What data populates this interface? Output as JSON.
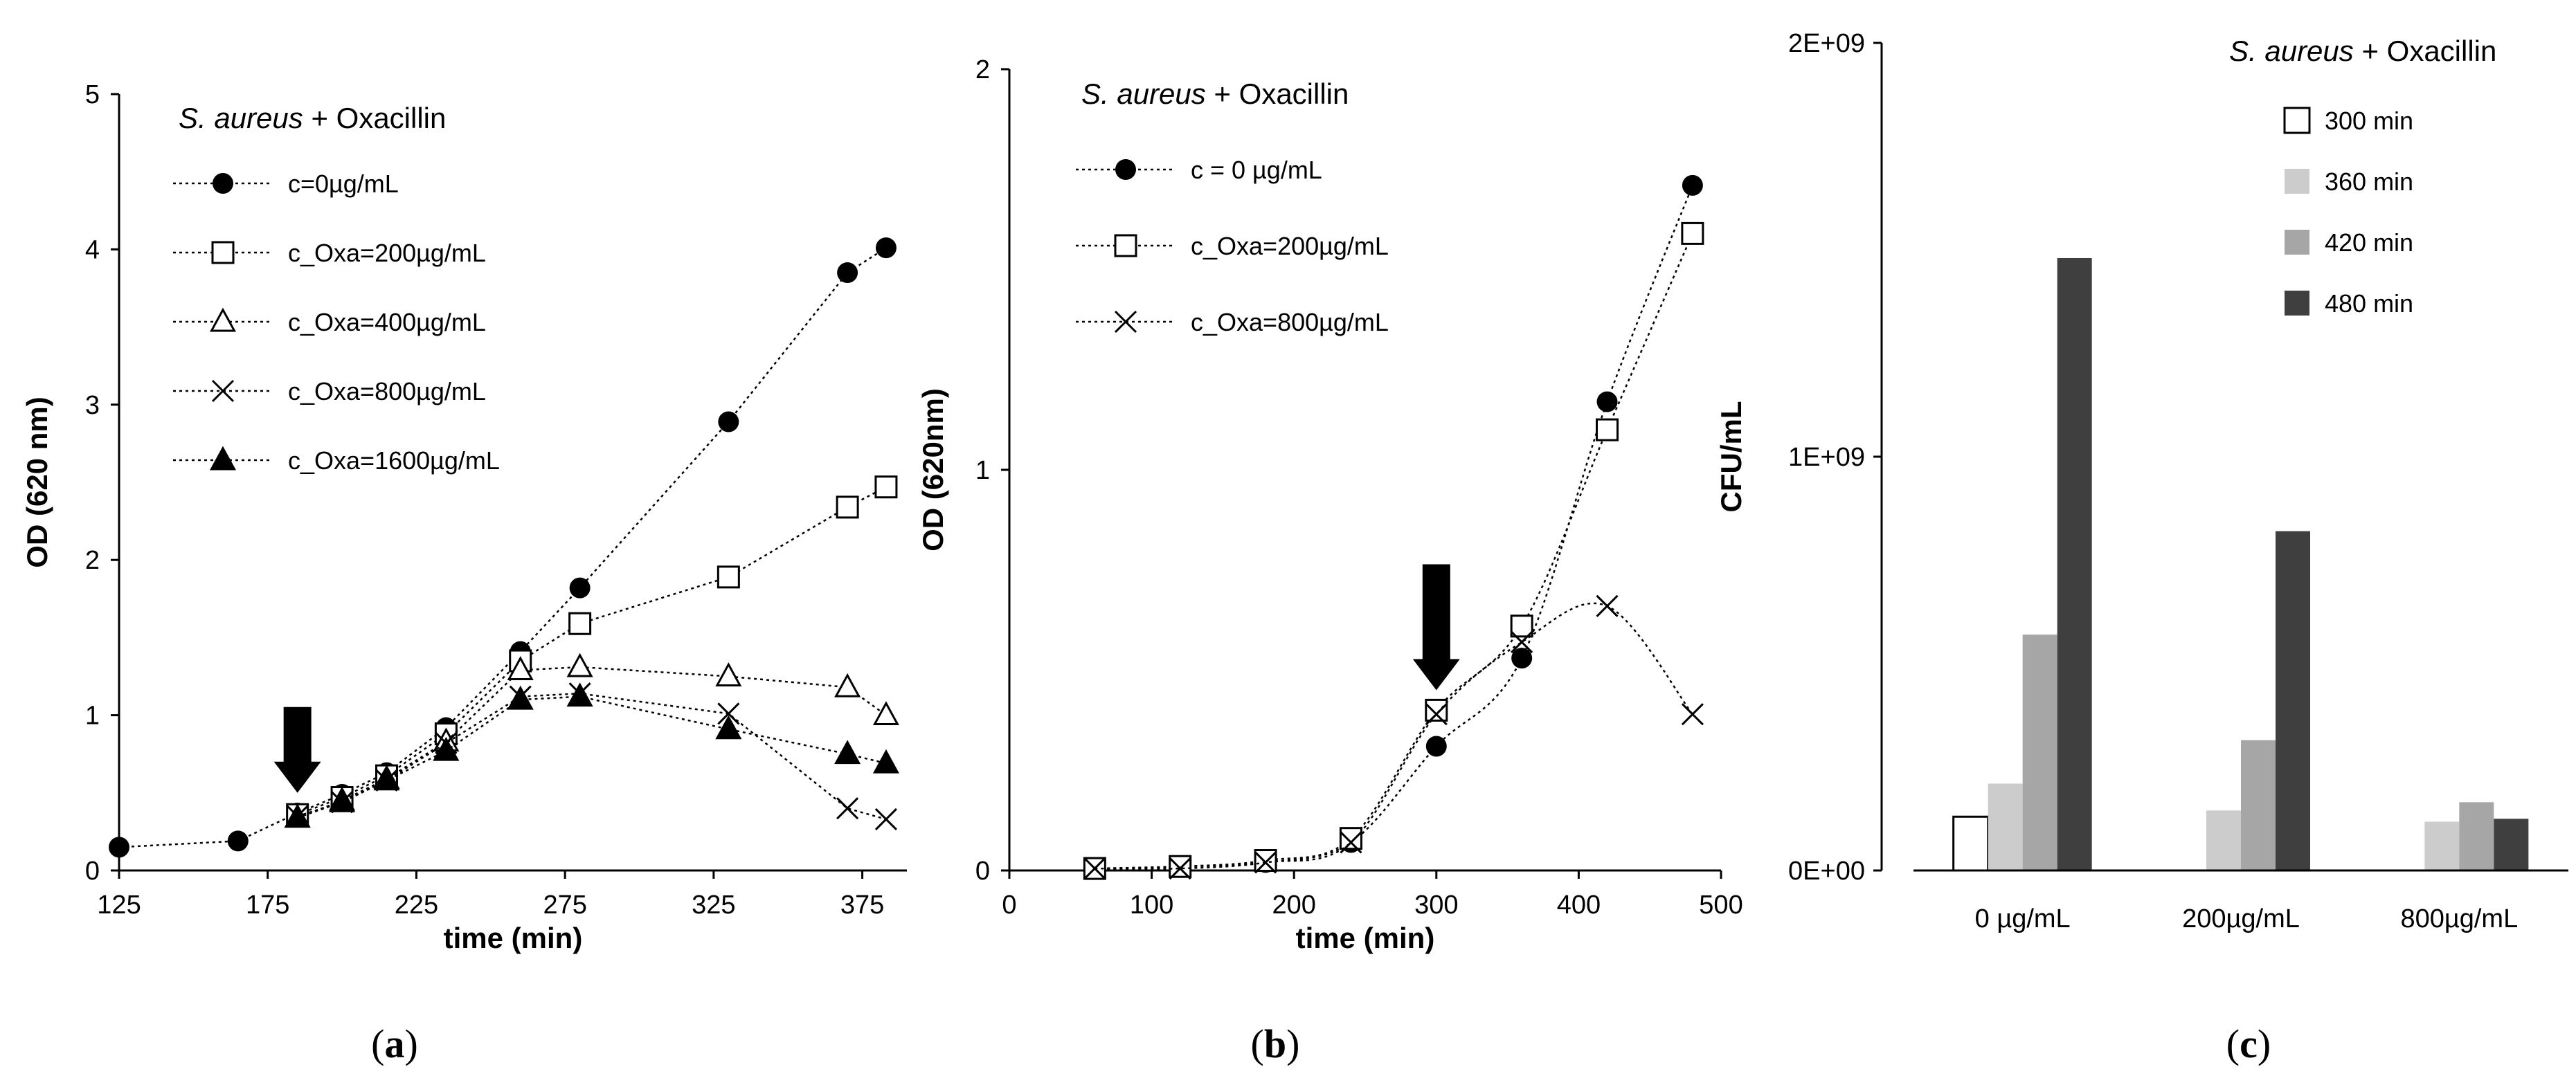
{
  "chart_data": [
    {
      "type": "line",
      "panel_label": "a",
      "legend_title": {
        "italic": "S. aureus",
        "rest": " + Oxacillin"
      },
      "xlabel": "time (min)",
      "ylabel": "OD (620 nm)",
      "xlim": [
        125,
        390
      ],
      "ylim": [
        0,
        5
      ],
      "xticks": [
        "125",
        "175",
        "225",
        "275",
        "325",
        "375"
      ],
      "yticks": [
        "0",
        "1",
        "2",
        "3",
        "4",
        "5"
      ],
      "annotation": {
        "type": "arrow",
        "x": 185,
        "y": 0.5
      },
      "series": [
        {
          "name": "c=0µg/mL",
          "marker": "filled-circle",
          "x": [
            125,
            165,
            185,
            200,
            215,
            235,
            260,
            280,
            330,
            370,
            383
          ],
          "y": [
            0.15,
            0.19,
            0.37,
            0.49,
            0.63,
            0.92,
            1.41,
            1.82,
            2.89,
            3.85,
            4.01
          ]
        },
        {
          "name": "c_Oxa=200µg/mL",
          "marker": "open-square",
          "x": [
            185,
            200,
            215,
            235,
            260,
            280,
            330,
            370,
            383
          ],
          "y": [
            0.36,
            0.47,
            0.61,
            0.88,
            1.35,
            1.59,
            1.89,
            2.34,
            2.47
          ]
        },
        {
          "name": "c_Oxa=400µg/mL",
          "marker": "open-triangle",
          "x": [
            185,
            200,
            215,
            235,
            260,
            280,
            330,
            370,
            383
          ],
          "y": [
            0.34,
            0.45,
            0.59,
            0.83,
            1.29,
            1.31,
            1.25,
            1.18,
            1.0
          ]
        },
        {
          "name": "c_Oxa=800µg/mL",
          "marker": "cross",
          "x": [
            185,
            200,
            215,
            235,
            260,
            280,
            330,
            370,
            383
          ],
          "y": [
            0.35,
            0.44,
            0.58,
            0.82,
            1.12,
            1.14,
            1.01,
            0.4,
            0.33
          ]
        },
        {
          "name": "c_Oxa=1600µg/mL",
          "marker": "filled-triangle",
          "x": [
            185,
            200,
            215,
            235,
            260,
            280,
            330,
            370,
            383
          ],
          "y": [
            0.34,
            0.44,
            0.58,
            0.77,
            1.1,
            1.12,
            0.91,
            0.75,
            0.69
          ]
        }
      ]
    },
    {
      "type": "line",
      "panel_label": "b",
      "legend_title": {
        "italic": "S. aureus",
        "rest": " + Oxacillin"
      },
      "xlabel": "time (min)",
      "ylabel": "OD (620nm)",
      "xlim": [
        0,
        500
      ],
      "ylim": [
        0,
        2
      ],
      "xticks": [
        "0",
        "100",
        "200",
        "300",
        "400",
        "500"
      ],
      "yticks": [
        "0",
        "1",
        "2"
      ],
      "annotation": {
        "type": "arrow",
        "x": 300,
        "y": 0.45
      },
      "series": [
        {
          "name": "c = 0 µg/mL",
          "marker": "filled-circle",
          "smooth": true,
          "x": [
            60,
            120,
            180,
            240,
            300,
            360,
            420,
            480
          ],
          "y": [
            0.005,
            0.01,
            0.02,
            0.07,
            0.31,
            0.53,
            1.17,
            1.71
          ]
        },
        {
          "name": "c_Oxa=200µg/mL",
          "marker": "open-square",
          "smooth": true,
          "x": [
            60,
            120,
            180,
            240,
            300,
            360,
            420,
            480
          ],
          "y": [
            0.005,
            0.01,
            0.025,
            0.08,
            0.4,
            0.61,
            1.1,
            1.59
          ]
        },
        {
          "name": "c_Oxa=800µg/mL",
          "marker": "cross",
          "smooth": true,
          "x": [
            60,
            120,
            180,
            240,
            300,
            360,
            420,
            480
          ],
          "y": [
            0.005,
            0.005,
            0.02,
            0.07,
            0.39,
            0.57,
            0.66,
            0.39
          ]
        }
      ]
    },
    {
      "type": "bar",
      "panel_label": "c",
      "legend_title": {
        "italic": "S. aureus",
        "rest": " + Oxacillin"
      },
      "xlabel": "",
      "ylabel": "CFU/mL",
      "ylim": [
        0,
        2000000000
      ],
      "yticks": [
        "0E+00",
        "1E+09",
        "2E+09"
      ],
      "categories": [
        "0 µg/mL",
        "200µg/mL",
        "800µg/mL"
      ],
      "series": [
        {
          "name": "300 min",
          "color": "#ffffff",
          "values": [
            130000000,
            null,
            null
          ]
        },
        {
          "name": "360 min",
          "color": "#cccccc",
          "values": [
            210000000,
            145000000,
            118000000
          ]
        },
        {
          "name": "420 min",
          "color": "#a6a6a6",
          "values": [
            570000000,
            315000000,
            165000000
          ]
        },
        {
          "name": "480 min",
          "color": "#3f3f3f",
          "values": [
            1480000000,
            820000000,
            125000000
          ]
        }
      ]
    }
  ]
}
